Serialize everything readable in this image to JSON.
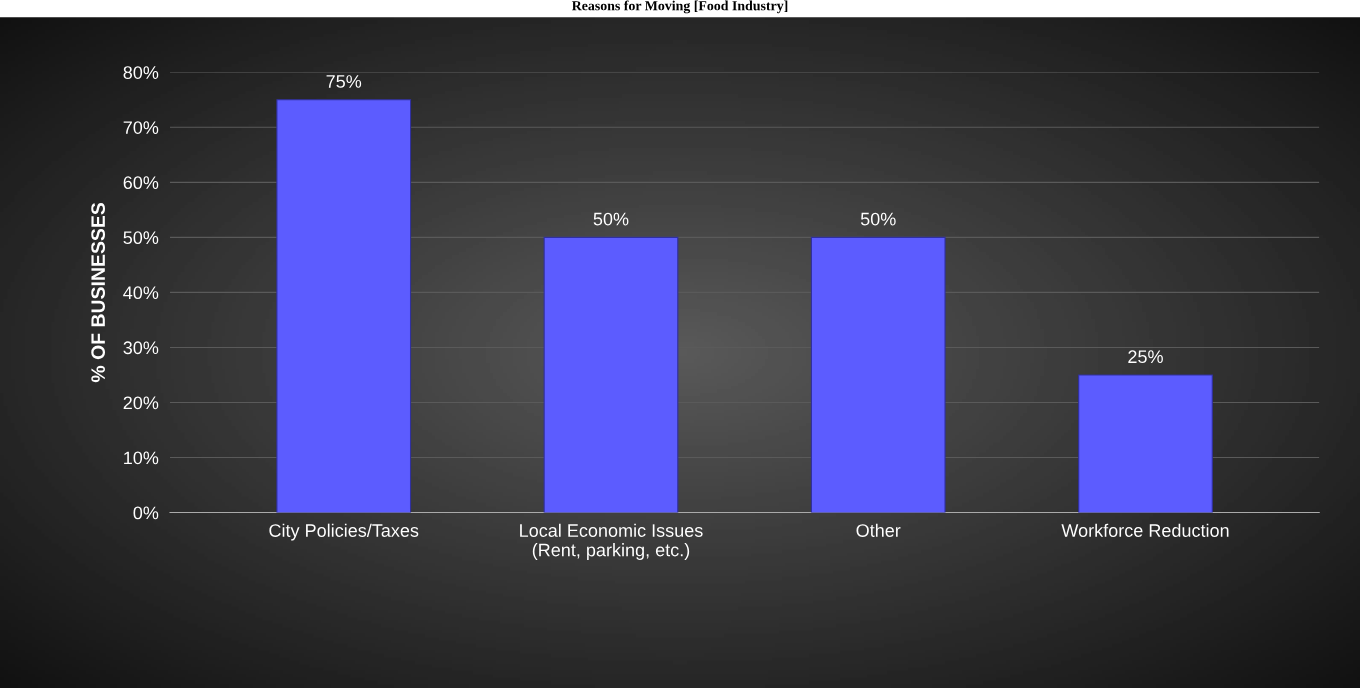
{
  "chart_data": {
    "type": "bar",
    "title": "Reasons for Moving [Food Industry]",
    "ylabel": "% OF BUSINESSES",
    "categories": [
      "City Policies/Taxes",
      "Local Economic Issues\n(Rent, parking, etc.)",
      "Other",
      "Workforce Reduction"
    ],
    "values": [
      75,
      50,
      50,
      25
    ],
    "color": "#5c5cff",
    "ylim": [
      0,
      80
    ],
    "yticks": [
      {
        "value": 0,
        "label": "0%"
      },
      {
        "value": 10,
        "label": "10%"
      },
      {
        "value": 20,
        "label": "20%"
      },
      {
        "value": 30,
        "label": "30%"
      },
      {
        "value": 40,
        "label": "40%"
      },
      {
        "value": 50,
        "label": "50%"
      },
      {
        "value": 60,
        "label": "60%"
      },
      {
        "value": 70,
        "label": "70%"
      },
      {
        "value": 80,
        "label": "80%"
      }
    ],
    "value_labels": [
      "75%",
      "50%",
      "50%",
      "25%"
    ],
    "grid": "y"
  }
}
